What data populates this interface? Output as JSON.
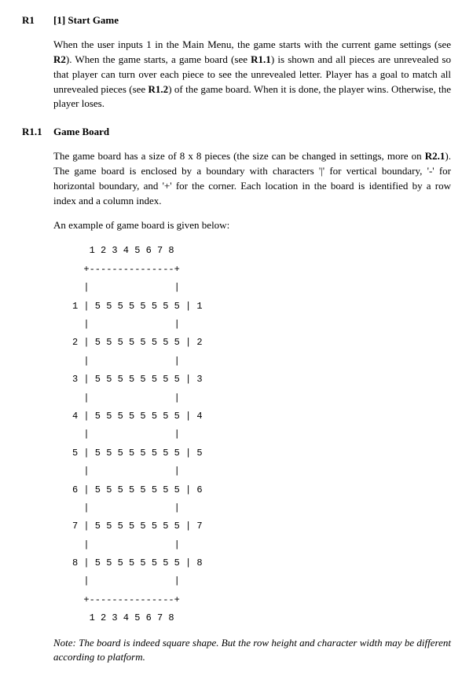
{
  "sections": {
    "r1": {
      "id": "R1",
      "title": "[1] Start Game",
      "para_parts": [
        {
          "t": "When the user inputs 1 in the Main Menu, the game starts with the current game settings (see ",
          "b": false
        },
        {
          "t": "R2",
          "b": true
        },
        {
          "t": "). When the game starts, a game board (see ",
          "b": false
        },
        {
          "t": "R1.1",
          "b": true
        },
        {
          "t": ") is shown and all pieces are unrevealed so that player can turn over each piece to see the unrevealed letter. Player has a goal to match all unrevealed pieces (see ",
          "b": false
        },
        {
          "t": "R1.2",
          "b": true
        },
        {
          "t": ") of the game board. When it is done, the player wins. Otherwise, the player loses.",
          "b": false
        }
      ]
    },
    "r11": {
      "id": "R1.1",
      "title": "Game Board",
      "para1_parts": [
        {
          "t": "The game board has a size of 8 x 8 pieces (the size can be changed in settings, more on ",
          "b": false
        },
        {
          "t": "R2.1",
          "b": true
        },
        {
          "t": "). The game board is enclosed by a boundary with characters '|' for vertical boundary, '-' for horizontal boundary, and '+' for the corner. Each location in the board is identified by a row index and a column index.",
          "b": false
        }
      ],
      "para2": "An example of game board is given below:",
      "board_text": "   1 2 3 4 5 6 7 8\n  +---------------+\n  |               |\n1 | 5 5 5 5 5 5 5 5 | 1\n  |               |\n2 | 5 5 5 5 5 5 5 5 | 2\n  |               |\n3 | 5 5 5 5 5 5 5 5 | 3\n  |               |\n4 | 5 5 5 5 5 5 5 5 | 4\n  |               |\n5 | 5 5 5 5 5 5 5 5 | 5\n  |               |\n6 | 5 5 5 5 5 5 5 5 | 6\n  |               |\n7 | 5 5 5 5 5 5 5 5 | 7\n  |               |\n8 | 5 5 5 5 5 5 5 5 | 8\n  |               |\n  +---------------+\n   1 2 3 4 5 6 7 8",
      "note": "Note: The board is indeed square shape. But the row height and character width may be different according to platform."
    }
  },
  "colors": {
    "text": "#000000",
    "background": "#ffffff"
  },
  "typography": {
    "body_font": "Times New Roman",
    "body_size_pt": 10,
    "mono_font": "Courier New",
    "mono_size_pt": 9
  }
}
